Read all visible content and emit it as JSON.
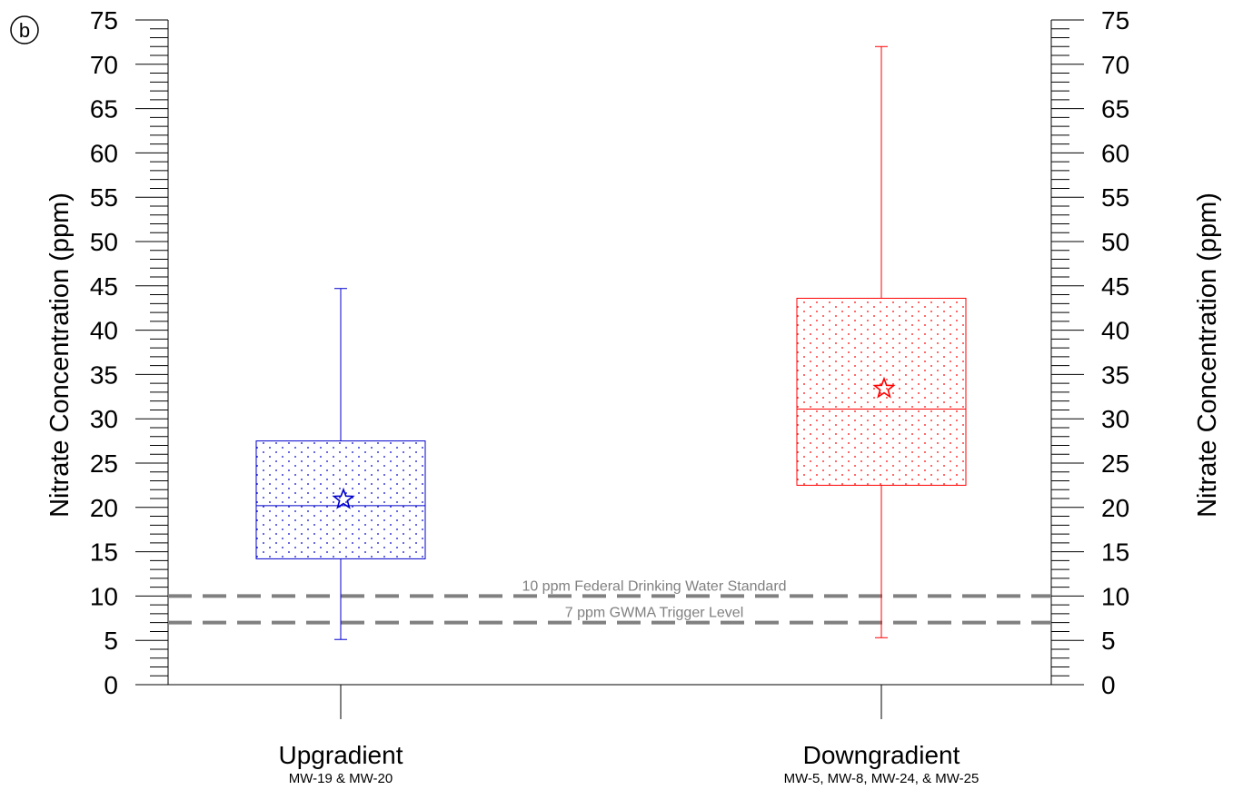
{
  "panel_label": "b",
  "chart_data": {
    "type": "box",
    "ylabel_left": "Nitrate Concentration (ppm)",
    "ylabel_right": "Nitrate Concentration (ppm)",
    "ylim": [
      0,
      75
    ],
    "yticks": [
      0,
      5,
      10,
      15,
      20,
      25,
      30,
      35,
      40,
      45,
      50,
      55,
      60,
      65,
      70,
      75
    ],
    "minor_tick_step": 1,
    "grid": false,
    "series": [
      {
        "name": "Upgradient",
        "sublabel": "MW-19 & MW-20",
        "color": "#0000cc",
        "whisker_low": 5.1,
        "q1": 14.2,
        "median": 20.2,
        "mean": 20.9,
        "q3": 27.5,
        "whisker_high": 44.7
      },
      {
        "name": "Downgradient",
        "sublabel": "MW-5, MW-8, MW-24, & MW-25",
        "color": "#ff0000",
        "whisker_low": 5.3,
        "q1": 22.5,
        "median": 31.1,
        "mean": 33.4,
        "q3": 43.6,
        "whisker_high": 72.0
      }
    ],
    "reference_lines": [
      {
        "value": 10,
        "label": "10 ppm Federal Drinking Water Standard",
        "color": "#808080",
        "style": "dashed"
      },
      {
        "value": 7,
        "label": "7 ppm GWMA Trigger Level",
        "color": "#808080",
        "style": "dashed"
      }
    ]
  }
}
